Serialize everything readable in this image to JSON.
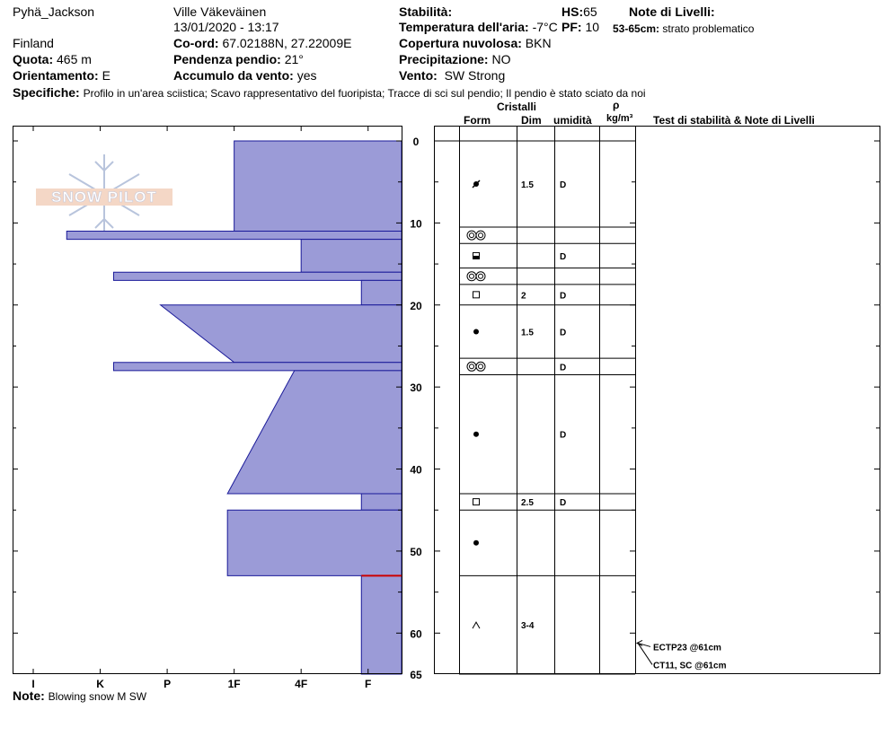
{
  "header": {
    "location": "Pyhä_Jackson",
    "country": "Finland",
    "elevation_label": "Quota:",
    "elevation_value": "465 m",
    "aspect_label": "Orientamento:",
    "aspect_value": "E",
    "observer": "Ville Väkeväinen",
    "datetime": "13/01/2020 - 13:17",
    "coord_label": "Co-ord:",
    "coord_value": "67.02188N, 27.22009E",
    "slope_label": "Pendenza pendio:",
    "slope_value": "21°",
    "wind_loading_label": "Accumulo da vento:",
    "wind_loading_value": "yes",
    "stability_label": "Stabilità:",
    "air_temp_label": "Temperatura dell'aria:",
    "air_temp_value": "-7°C",
    "cloud_label": "Copertura nuvolosa:",
    "cloud_value": "BKN",
    "precip_label": "Precipitazione:",
    "precip_value": "NO",
    "wind_label": "Vento:",
    "wind_value": "SW Strong",
    "hs_label": "HS:",
    "hs_value": "65",
    "pf_label": "PF:",
    "pf_value": "10",
    "layer_notes_label": "Note di Livelli:",
    "layer_notes_range": "53-65cm:",
    "layer_notes_text": "strato problematico",
    "specifics_label": "Specifiche:",
    "specifics_text": "Profilo in un'area sciistica; Scavo rappresentativo del fuoripista; Tracce di sci sul pendio; Il pendio è stato sciato da noi"
  },
  "columns": {
    "cristalli": "Cristalli",
    "form": "Form",
    "dim": "Dim",
    "umidita": "umidità",
    "rho": "ρ",
    "density_unit": "kg/m³",
    "tests": "Test di stabilità & Note di Livelli"
  },
  "logo_text": "SNOW PILOT",
  "note_label": "Note:",
  "note_text": "Blowing snow M SW",
  "colors": {
    "hardness_fill": "#9b9bd7",
    "hardness_stroke": "#1a1a99",
    "problem_line": "#cc0000"
  },
  "chart_data": {
    "type": "snow-profile",
    "depth_axis": {
      "min": 0,
      "max": 65,
      "ticks": [
        0,
        10,
        20,
        30,
        40,
        50,
        60,
        65
      ]
    },
    "hardness_axis": {
      "categories": [
        "I",
        "K",
        "P",
        "1F",
        "4F",
        "F"
      ]
    },
    "hardness_profile": [
      {
        "top": 0,
        "bottom": 11,
        "h_top": 2.5,
        "h_bottom": 2.5
      },
      {
        "top": 11,
        "bottom": 12,
        "h_top": 5,
        "h_bottom": 5
      },
      {
        "top": 12,
        "bottom": 16,
        "h_top": 1.5,
        "h_bottom": 1.5
      },
      {
        "top": 16,
        "bottom": 17,
        "h_top": 4.3,
        "h_bottom": 4.3
      },
      {
        "top": 17,
        "bottom": 20,
        "h_top": 0.6,
        "h_bottom": 0.6
      },
      {
        "top": 20,
        "bottom": 27,
        "h_top": 3.6,
        "h_bottom": 2.5
      },
      {
        "top": 27,
        "bottom": 28,
        "h_top": 4.3,
        "h_bottom": 4.3
      },
      {
        "top": 28,
        "bottom": 43,
        "h_top": 1.6,
        "h_bottom": 2.6
      },
      {
        "top": 43,
        "bottom": 45,
        "h_top": 0.6,
        "h_bottom": 0.6
      },
      {
        "top": 45,
        "bottom": 53,
        "h_top": 2.6,
        "h_bottom": 2.6
      },
      {
        "top": 53,
        "bottom": 65,
        "h_top": 0.6,
        "h_bottom": 0.6
      }
    ],
    "problem_depth": 53,
    "layers": [
      {
        "top": 0,
        "bottom": 10.5,
        "form": "pp-irregular",
        "dim": "1.5",
        "wet": "D"
      },
      {
        "top": 10.5,
        "bottom": 12.5,
        "form": "ice-formation",
        "dim": "",
        "wet": ""
      },
      {
        "top": 12.5,
        "bottom": 15.5,
        "form": "melt-freeze",
        "dim": "",
        "wet": "D"
      },
      {
        "top": 15.5,
        "bottom": 17.5,
        "form": "ice-formation",
        "dim": "",
        "wet": ""
      },
      {
        "top": 17.5,
        "bottom": 20,
        "form": "faceted",
        "dim": "2",
        "wet": "D"
      },
      {
        "top": 20,
        "bottom": 26.5,
        "form": "rounded",
        "dim": "1.5",
        "wet": "D"
      },
      {
        "top": 26.5,
        "bottom": 28.5,
        "form": "ice-formation",
        "dim": "",
        "wet": "D"
      },
      {
        "top": 28.5,
        "bottom": 43,
        "form": "rounded",
        "dim": "",
        "wet": "D"
      },
      {
        "top": 43,
        "bottom": 45,
        "form": "faceted",
        "dim": "2.5",
        "wet": "D"
      },
      {
        "top": 45,
        "bottom": 53,
        "form": "rounded",
        "dim": "",
        "wet": ""
      },
      {
        "top": 53,
        "bottom": 65,
        "form": "depth-hoar",
        "dim": "3-4",
        "wet": ""
      }
    ],
    "stability_tests": [
      {
        "depth": 61,
        "label": "ECTP23 @61cm"
      },
      {
        "depth": 61,
        "label": "CT11, SC @61cm"
      }
    ]
  }
}
